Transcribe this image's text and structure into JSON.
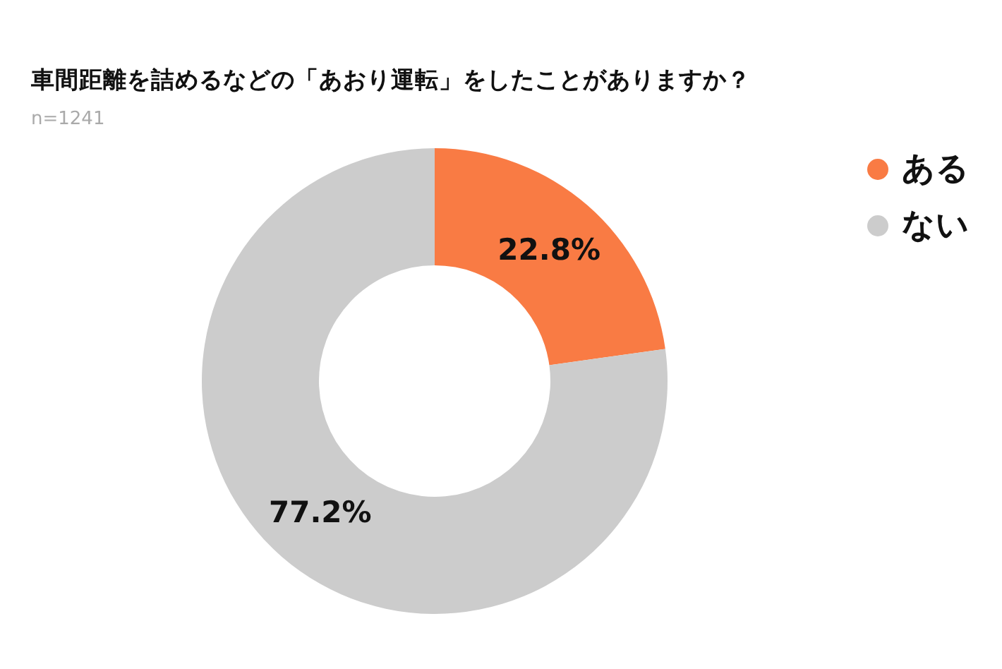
{
  "chart_data": {
    "type": "donut",
    "title": "車間距離を詰めるなどの「あおり運転」をしたことがありますか？",
    "subtitle": "n=1241",
    "categories": [
      "ある",
      "ない"
    ],
    "values": [
      22.8,
      77.2
    ],
    "colors": [
      "#f97b44",
      "#cccccc"
    ],
    "value_labels": [
      "22.8%",
      "77.2%"
    ],
    "legend": "top right"
  }
}
